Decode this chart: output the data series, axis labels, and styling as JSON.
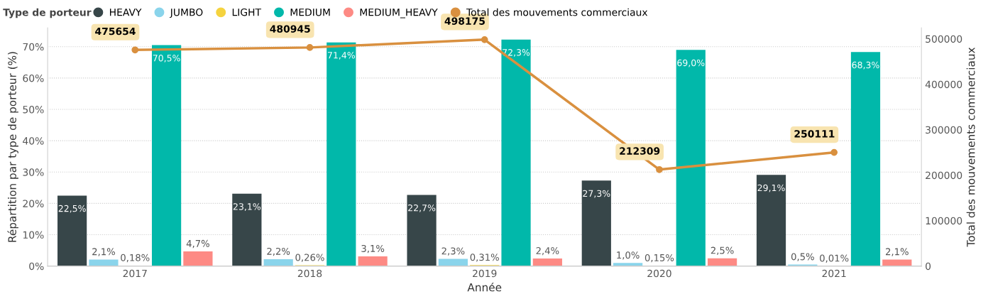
{
  "chart_data": {
    "type": "bar",
    "xlabel": "Année",
    "ylabel": "Répartition par type de porteur (%)",
    "y2label": "Total des mouvements commerciaux",
    "legend_title": "Type de porteur",
    "legend": "top left",
    "grid": "y",
    "marker": "circle",
    "line_style": "solid",
    "categories": [
      "2017",
      "2018",
      "2019",
      "2020",
      "2021"
    ],
    "ylim": [
      0,
      76
    ],
    "yticks": [
      {
        "value": 0,
        "label": "0%"
      },
      {
        "value": 10,
        "label": "10%"
      },
      {
        "value": 20,
        "label": "20%"
      },
      {
        "value": 30,
        "label": "30%"
      },
      {
        "value": 40,
        "label": "40%"
      },
      {
        "value": 50,
        "label": "50%"
      },
      {
        "value": 60,
        "label": "60%"
      },
      {
        "value": 70,
        "label": "70%"
      }
    ],
    "y2lim": [
      0,
      524000
    ],
    "y2ticks": [
      0,
      100000,
      200000,
      300000,
      400000,
      500000
    ],
    "series": [
      {
        "name": "HEAVY",
        "color": "#374649",
        "values": [
          22.5,
          23.1,
          22.7,
          27.3,
          29.1
        ],
        "value_labels": [
          "22,5%",
          "23,1%",
          "22,7%",
          "27,3%",
          "29,1%"
        ]
      },
      {
        "name": "JUMBO",
        "color": "#8ad4eb",
        "values": [
          2.1,
          2.2,
          2.3,
          1.0,
          0.5
        ],
        "value_labels": [
          "2,1%",
          "2,2%",
          "2,3%",
          "1,0%",
          "0,5%"
        ]
      },
      {
        "name": "LIGHT",
        "color": "#f5d33f",
        "values": [
          0.18,
          0.26,
          0.31,
          0.15,
          0.01
        ],
        "value_labels": [
          "0,18%",
          "0,26%",
          "0,31%",
          "0,15%",
          "0,01%"
        ]
      },
      {
        "name": "MEDIUM",
        "color": "#01b8aa",
        "values": [
          70.5,
          71.4,
          72.3,
          69.0,
          68.3
        ],
        "value_labels": [
          "70,5%",
          "71,4%",
          "72,3%",
          "69,0%",
          "68,3%"
        ]
      },
      {
        "name": "MEDIUM_HEAVY",
        "color": "#fd8a84",
        "values": [
          4.7,
          3.1,
          2.4,
          2.5,
          2.1
        ],
        "value_labels": [
          "4,7%",
          "3,1%",
          "2,4%",
          "2,5%",
          "2,1%"
        ]
      },
      {
        "name": "Total des mouvements commerciaux",
        "type": "line",
        "axis": "y2",
        "color": "#d9903f",
        "values": [
          475654,
          480945,
          498175,
          212309,
          250111
        ],
        "value_labels": [
          "475654",
          "480945",
          "498175",
          "212309",
          "250111"
        ]
      }
    ]
  }
}
